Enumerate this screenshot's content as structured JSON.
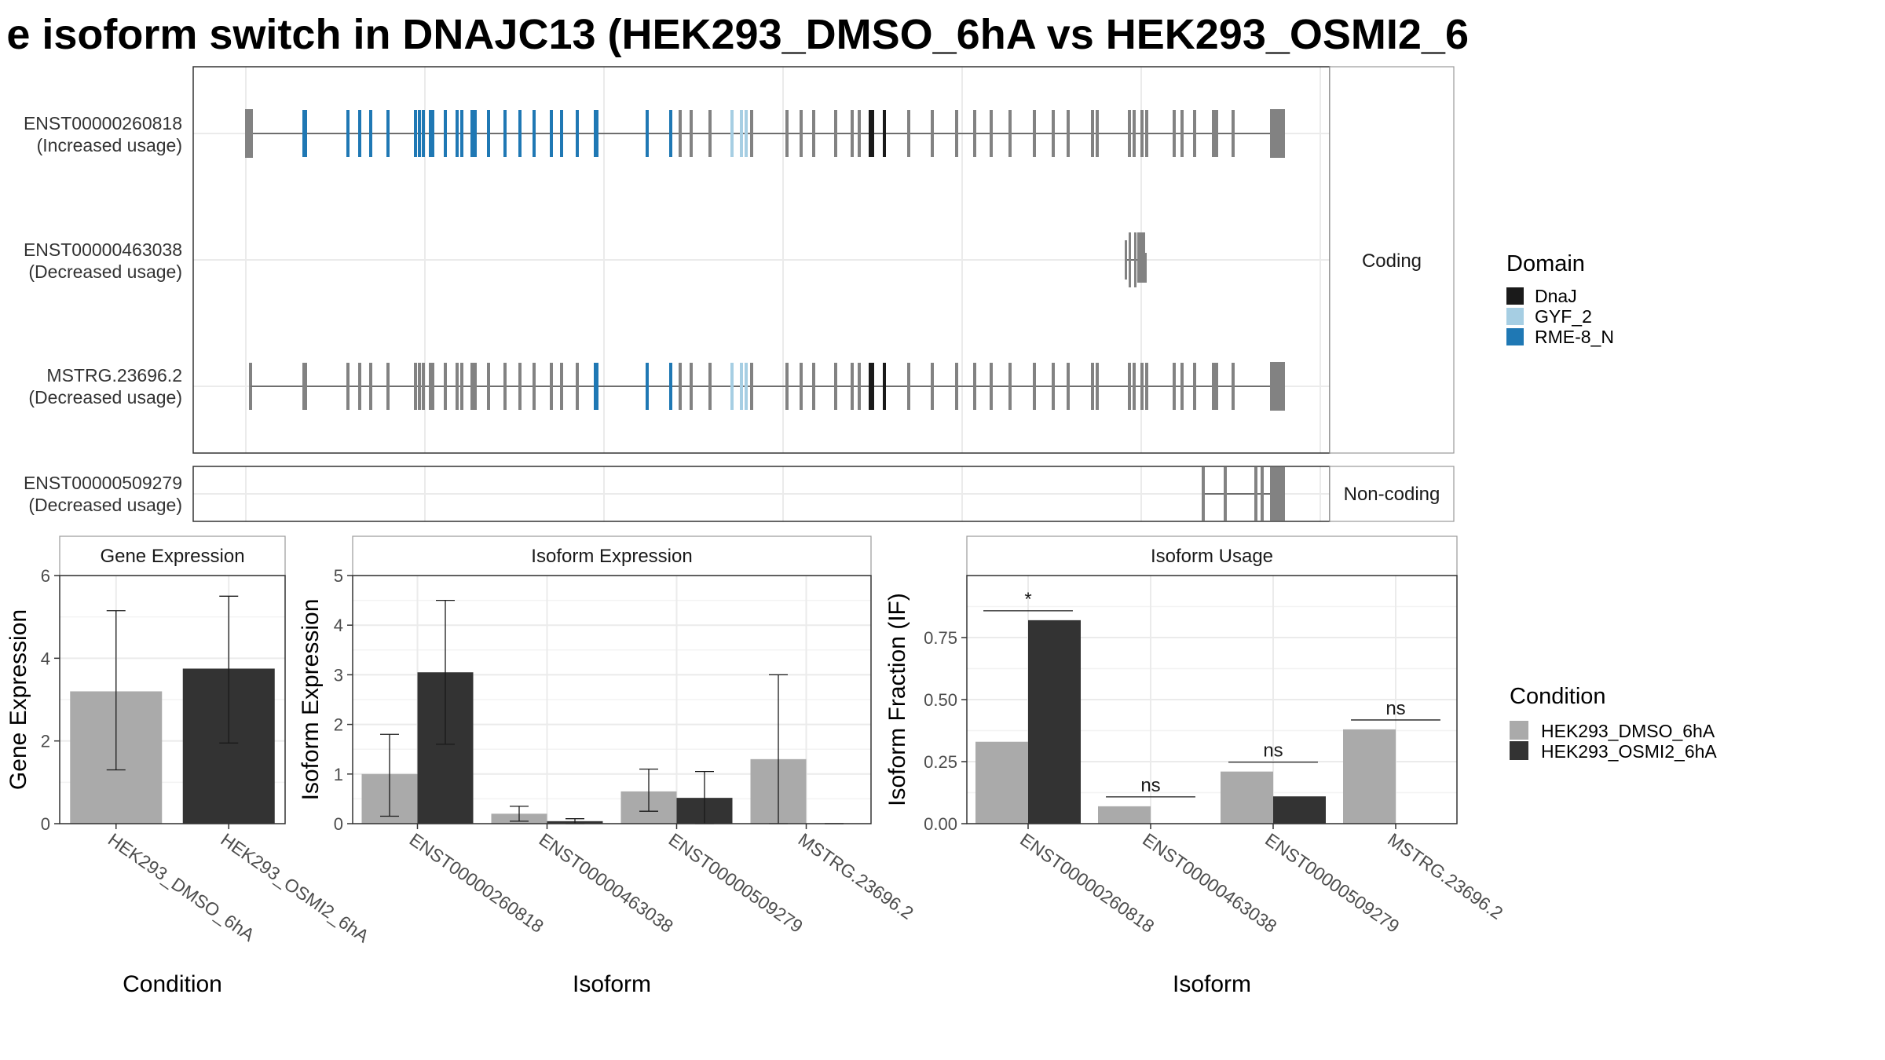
{
  "title": "e isoform switch in DNAJC13 (HEK293_DMSO_6hA vs HEK293_OSMI2_6",
  "structure": {
    "facets": [
      "Coding",
      "Non-coding"
    ],
    "coding_isoforms": [
      {
        "id": "ENST00000260818",
        "usage": "(Increased usage)"
      },
      {
        "id": "ENST00000463038",
        "usage": "(Decreased usage)"
      },
      {
        "id": "MSTRG.23696.2",
        "usage": "(Decreased usage)"
      }
    ],
    "noncoding_isoforms": [
      {
        "id": "ENST00000509279",
        "usage": "(Decreased usage)"
      }
    ],
    "domain_legend": {
      "title": "Domain",
      "items": [
        {
          "label": "DnaJ",
          "color": "#1a1a1a"
        },
        {
          "label": "GYF_2",
          "color": "#a6cee3"
        },
        {
          "label": "RME-8_N",
          "color": "#1f78b4"
        }
      ]
    }
  },
  "condition_legend": {
    "title": "Condition",
    "items": [
      {
        "label": "HEK293_DMSO_6hA",
        "color": "#aaaaaa"
      },
      {
        "label": "HEK293_OSMI2_6hA",
        "color": "#333333"
      }
    ]
  },
  "chart_data": [
    {
      "type": "bar",
      "title": "Gene Expression",
      "xlabel": "Condition",
      "ylabel": "Gene Expression",
      "ylim": [
        0,
        6
      ],
      "yticks": [
        "0",
        "2",
        "4",
        "6"
      ],
      "categories": [
        "HEK293_DMSO_6hA",
        "HEK293_OSMI2_6hA"
      ],
      "values": [
        3.2,
        3.75
      ],
      "errors_low": [
        1.3,
        1.95
      ],
      "errors_high": [
        5.15,
        5.5
      ]
    },
    {
      "type": "bar",
      "title": "Isoform Expression",
      "xlabel": "Isoform",
      "ylabel": "Isoform Expression",
      "ylim": [
        0,
        5
      ],
      "yticks": [
        "0",
        "1",
        "2",
        "3",
        "4",
        "5"
      ],
      "categories": [
        "ENST00000260818",
        "ENST00000463038",
        "ENST00000509279",
        "MSTRG.23696.2"
      ],
      "series": [
        {
          "values": [
            1.0,
            0.2,
            0.65,
            1.3
          ],
          "errors_low": [
            0.15,
            0.05,
            0.25,
            0.0
          ],
          "errors_high": [
            1.8,
            0.35,
            1.1,
            3.0
          ]
        },
        {
          "values": [
            3.05,
            0.05,
            0.52,
            0.0
          ],
          "errors_low": [
            1.6,
            0.0,
            0.0,
            0.0
          ],
          "errors_high": [
            4.5,
            0.1,
            1.05,
            0.0
          ]
        }
      ]
    },
    {
      "type": "bar",
      "title": "Isoform Usage",
      "xlabel": "Isoform",
      "ylabel": "Isoform Fraction (IF)",
      "ylim": [
        0,
        1.0
      ],
      "yticks": [
        "0.00",
        "0.25",
        "0.50",
        "0.75"
      ],
      "categories": [
        "ENST00000260818",
        "ENST00000463038",
        "ENST00000509279",
        "MSTRG.23696.2"
      ],
      "series": [
        {
          "values": [
            0.33,
            0.07,
            0.21,
            0.38
          ]
        },
        {
          "values": [
            0.82,
            0.0,
            0.11,
            0.0
          ]
        }
      ],
      "annotations": [
        "*",
        "ns",
        "ns",
        "ns"
      ]
    }
  ]
}
